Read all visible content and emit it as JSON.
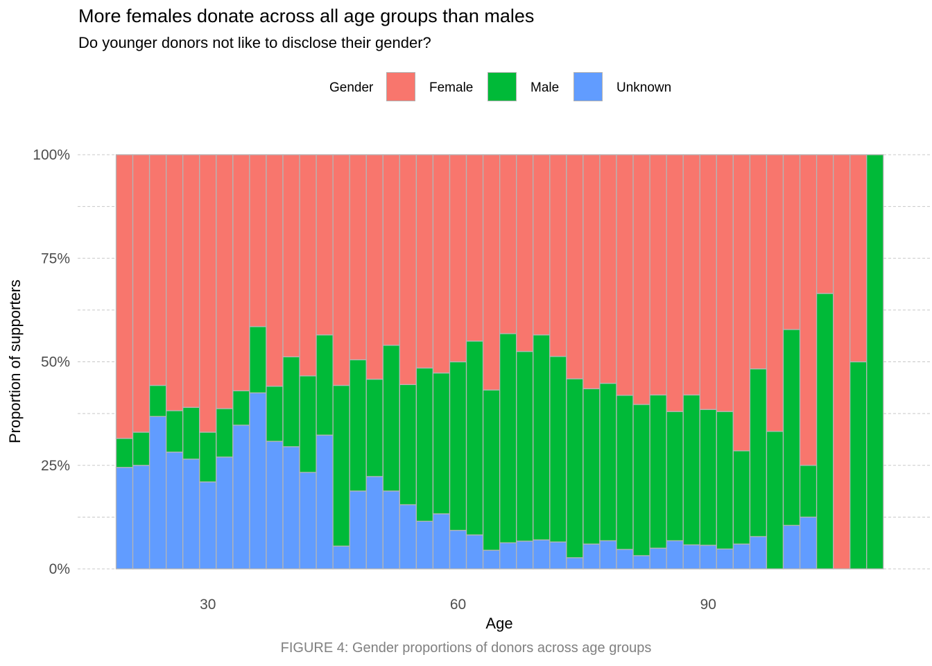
{
  "chart_data": {
    "type": "bar",
    "stacked": true,
    "title": "More females donate across all age groups than males",
    "subtitle": "Do younger donors not like to disclose their gender?",
    "xlabel": "Age",
    "ylabel": "Proportion of supporters",
    "caption": "FIGURE 4: Gender proportions of donors across age groups",
    "legend_title": "Gender",
    "legend_position": "top",
    "grid": true,
    "ylim": [
      0,
      1
    ],
    "y_ticks": [
      "0%",
      "25%",
      "50%",
      "75%",
      "100%"
    ],
    "x_ticks": [
      "30",
      "60",
      "90"
    ],
    "x_tick_values": [
      30,
      60,
      90
    ],
    "x": [
      20,
      22,
      24,
      26,
      28,
      30,
      32,
      34,
      36,
      38,
      40,
      42,
      44,
      46,
      48,
      50,
      52,
      54,
      56,
      58,
      60,
      62,
      64,
      66,
      68,
      70,
      72,
      74,
      76,
      78,
      80,
      82,
      84,
      86,
      88,
      90,
      92,
      94,
      96,
      98,
      100,
      102,
      104,
      106,
      108,
      110
    ],
    "series": [
      {
        "name": "Unknown",
        "color": "#619CFF",
        "values": [
          0.245,
          0.25,
          0.368,
          0.282,
          0.265,
          0.21,
          0.27,
          0.347,
          0.425,
          0.308,
          0.295,
          0.233,
          0.323,
          0.055,
          0.188,
          0.223,
          0.188,
          0.155,
          0.115,
          0.133,
          0.093,
          0.082,
          0.045,
          0.063,
          0.067,
          0.07,
          0.065,
          0.027,
          0.06,
          0.068,
          0.047,
          0.032,
          0.05,
          0.068,
          0.058,
          0.057,
          0.048,
          0.06,
          0.078,
          0.0,
          0.105,
          0.125,
          0.0,
          0.0,
          0.0,
          0.0
        ]
      },
      {
        "name": "Male",
        "color": "#00BA38",
        "values": [
          0.07,
          0.08,
          0.075,
          0.1,
          0.125,
          0.12,
          0.117,
          0.083,
          0.16,
          0.133,
          0.217,
          0.233,
          0.242,
          0.388,
          0.317,
          0.235,
          0.352,
          0.29,
          0.37,
          0.34,
          0.407,
          0.468,
          0.387,
          0.505,
          0.458,
          0.495,
          0.448,
          0.432,
          0.375,
          0.38,
          0.372,
          0.365,
          0.37,
          0.312,
          0.362,
          0.328,
          0.332,
          0.225,
          0.405,
          0.332,
          0.473,
          0.125,
          0.665,
          0.0,
          0.5,
          1.0
        ]
      },
      {
        "name": "Female",
        "color": "#F8766D",
        "values": [
          0.685,
          0.67,
          0.557,
          0.618,
          0.61,
          0.67,
          0.613,
          0.57,
          0.415,
          0.559,
          0.488,
          0.534,
          0.435,
          0.557,
          0.495,
          0.542,
          0.46,
          0.555,
          0.515,
          0.527,
          0.5,
          0.45,
          0.568,
          0.432,
          0.475,
          0.435,
          0.487,
          0.541,
          0.565,
          0.552,
          0.581,
          0.603,
          0.58,
          0.62,
          0.58,
          0.615,
          0.62,
          0.715,
          0.517,
          0.668,
          0.422,
          0.75,
          0.335,
          1.0,
          0.5,
          0.0
        ]
      }
    ]
  },
  "legend": {
    "title": "Gender",
    "items": [
      {
        "label": "Female",
        "color": "#F8766D"
      },
      {
        "label": "Male",
        "color": "#00BA38"
      },
      {
        "label": "Unknown",
        "color": "#619CFF"
      }
    ]
  }
}
